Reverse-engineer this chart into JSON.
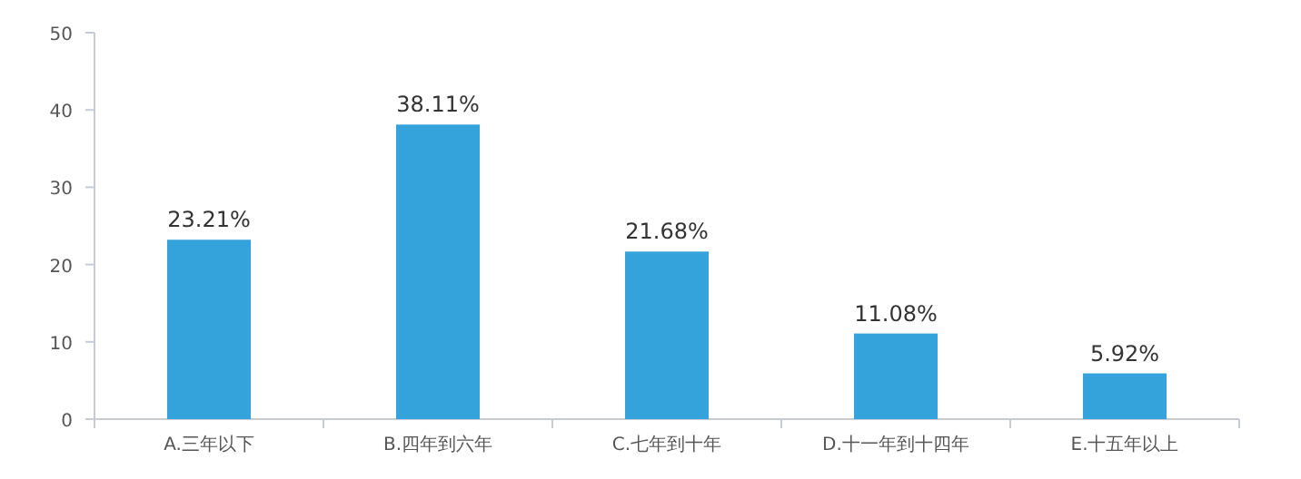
{
  "chart_data": {
    "type": "bar",
    "categories": [
      "A.三年以下",
      "B.四年到六年",
      "C.七年到十年",
      "D.十一年到十四年",
      "E.十五年以上"
    ],
    "values": [
      23.21,
      38.11,
      21.68,
      11.08,
      5.92
    ],
    "value_labels": [
      "23.21%",
      "38.11%",
      "21.68%",
      "11.08%",
      "5.92%"
    ],
    "color": "#35a3db",
    "ylim": [
      0,
      50
    ],
    "yticks": [
      0,
      10,
      20,
      30,
      40,
      50
    ],
    "grid": false
  }
}
